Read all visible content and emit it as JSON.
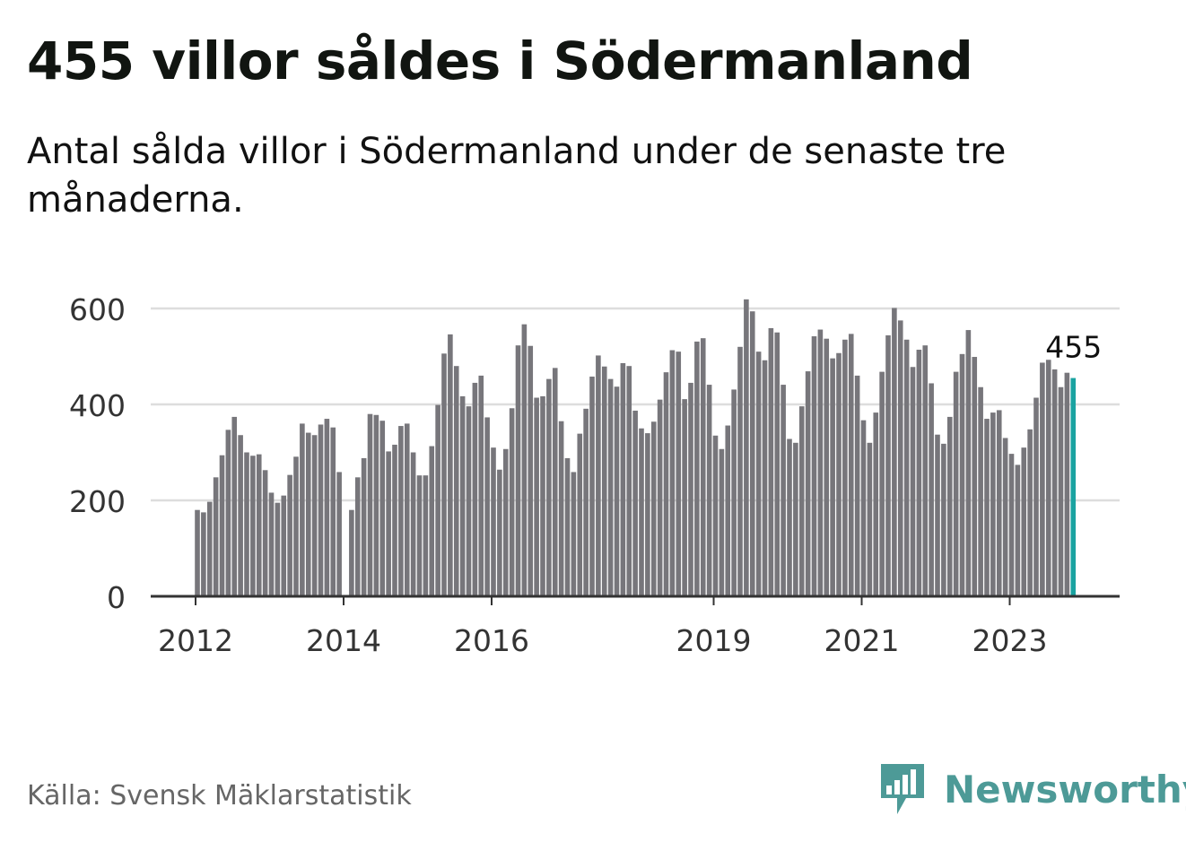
{
  "title": "455 villor såldes i Södermanland",
  "subtitle": "Antal sålda villor i Södermanland under de senaste tre månaderna.",
  "source": "Källa: Svensk Mäklarstatistik",
  "brand": "Newsworthy",
  "colors": {
    "bar": "#77767b",
    "highlight": "#1aa3a1",
    "grid": "#dddddd",
    "axis": "#333333",
    "brand": "#4d9a97"
  },
  "chart_data": {
    "type": "bar",
    "start": "2012-01",
    "ylim": [
      0,
      620
    ],
    "yticks": [
      0,
      200,
      400,
      600
    ],
    "xticks": [
      {
        "label": "2012",
        "index": 0
      },
      {
        "label": "2014",
        "index": 24
      },
      {
        "label": "2016",
        "index": 48
      },
      {
        "label": "2019",
        "index": 84
      },
      {
        "label": "2021",
        "index": 108
      },
      {
        "label": "2023",
        "index": 132
      }
    ],
    "highlight_label": "455",
    "values": [
      180,
      175,
      197,
      248,
      294,
      347,
      374,
      336,
      300,
      293,
      296,
      263,
      216,
      195,
      210,
      253,
      291,
      360,
      341,
      336,
      358,
      370,
      352,
      259,
      null,
      180,
      248,
      288,
      380,
      378,
      366,
      302,
      316,
      355,
      360,
      300,
      252,
      252,
      313,
      399,
      506,
      546,
      480,
      417,
      396,
      445,
      460,
      373,
      310,
      264,
      307,
      392,
      523,
      567,
      522,
      414,
      417,
      453,
      476,
      365,
      288,
      259,
      339,
      391,
      458,
      502,
      479,
      453,
      437,
      486,
      480,
      387,
      350,
      340,
      364,
      410,
      467,
      513,
      510,
      411,
      445,
      531,
      538,
      441,
      335,
      307,
      356,
      431,
      520,
      619,
      594,
      510,
      492,
      559,
      550,
      441,
      328,
      320,
      396,
      469,
      542,
      556,
      537,
      496,
      507,
      535,
      547,
      460,
      367,
      320,
      383,
      468,
      544,
      601,
      575,
      535,
      478,
      514,
      523,
      444,
      337,
      318,
      374,
      468,
      505,
      555,
      499,
      436,
      370,
      383,
      388,
      330,
      297,
      274,
      310,
      348,
      414,
      487,
      493,
      473,
      436,
      466,
      455
    ]
  }
}
